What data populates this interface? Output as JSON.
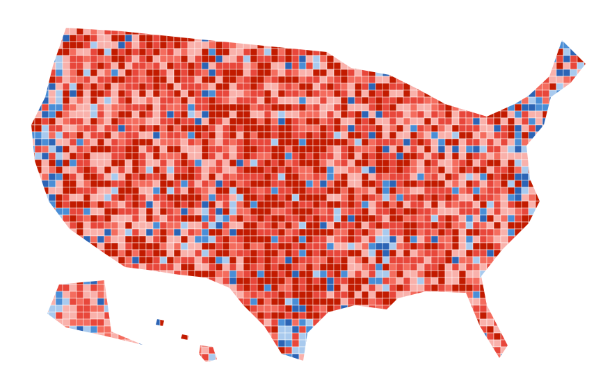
{
  "map": {
    "colors": [
      "#c21b00",
      "#e8473b",
      "#f46c5e",
      "#f9b1ab",
      "#a9caee",
      "#4a8ed6",
      "#2c64b5"
    ]
  }
}
